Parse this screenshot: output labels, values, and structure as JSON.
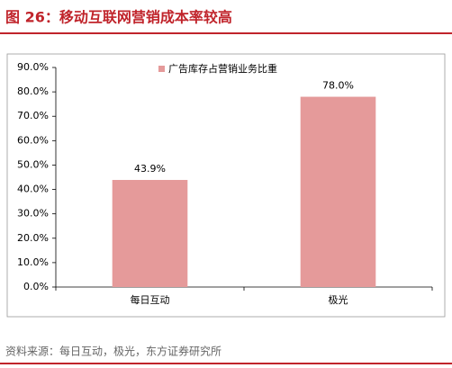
{
  "chart_data": {
    "type": "bar",
    "title": "图 26：移动互联网营销成本率较高",
    "source": "资料来源：每日互动，极光，东方证券研究所",
    "categories": [
      "每日互动",
      "极光"
    ],
    "series": [
      {
        "name": "广告库存占营销业务比重",
        "color": "#e59a9a",
        "values": [
          43.9,
          78.0
        ],
        "value_labels": [
          "43.9%",
          "78.0%"
        ]
      }
    ],
    "ylim": [
      0,
      90
    ],
    "yticks": [
      {
        "value": 0,
        "label": "0.0%"
      },
      {
        "value": 10,
        "label": "10.0%"
      },
      {
        "value": 20,
        "label": "20.0%"
      },
      {
        "value": 30,
        "label": "30.0%"
      },
      {
        "value": 40,
        "label": "40.0%"
      },
      {
        "value": 50,
        "label": "50.0%"
      },
      {
        "value": 60,
        "label": "60.0%"
      },
      {
        "value": 70,
        "label": "70.0%"
      },
      {
        "value": 80,
        "label": "80.0%"
      },
      {
        "value": 90,
        "label": "90.0%"
      }
    ],
    "legend": "top",
    "grid": false
  }
}
